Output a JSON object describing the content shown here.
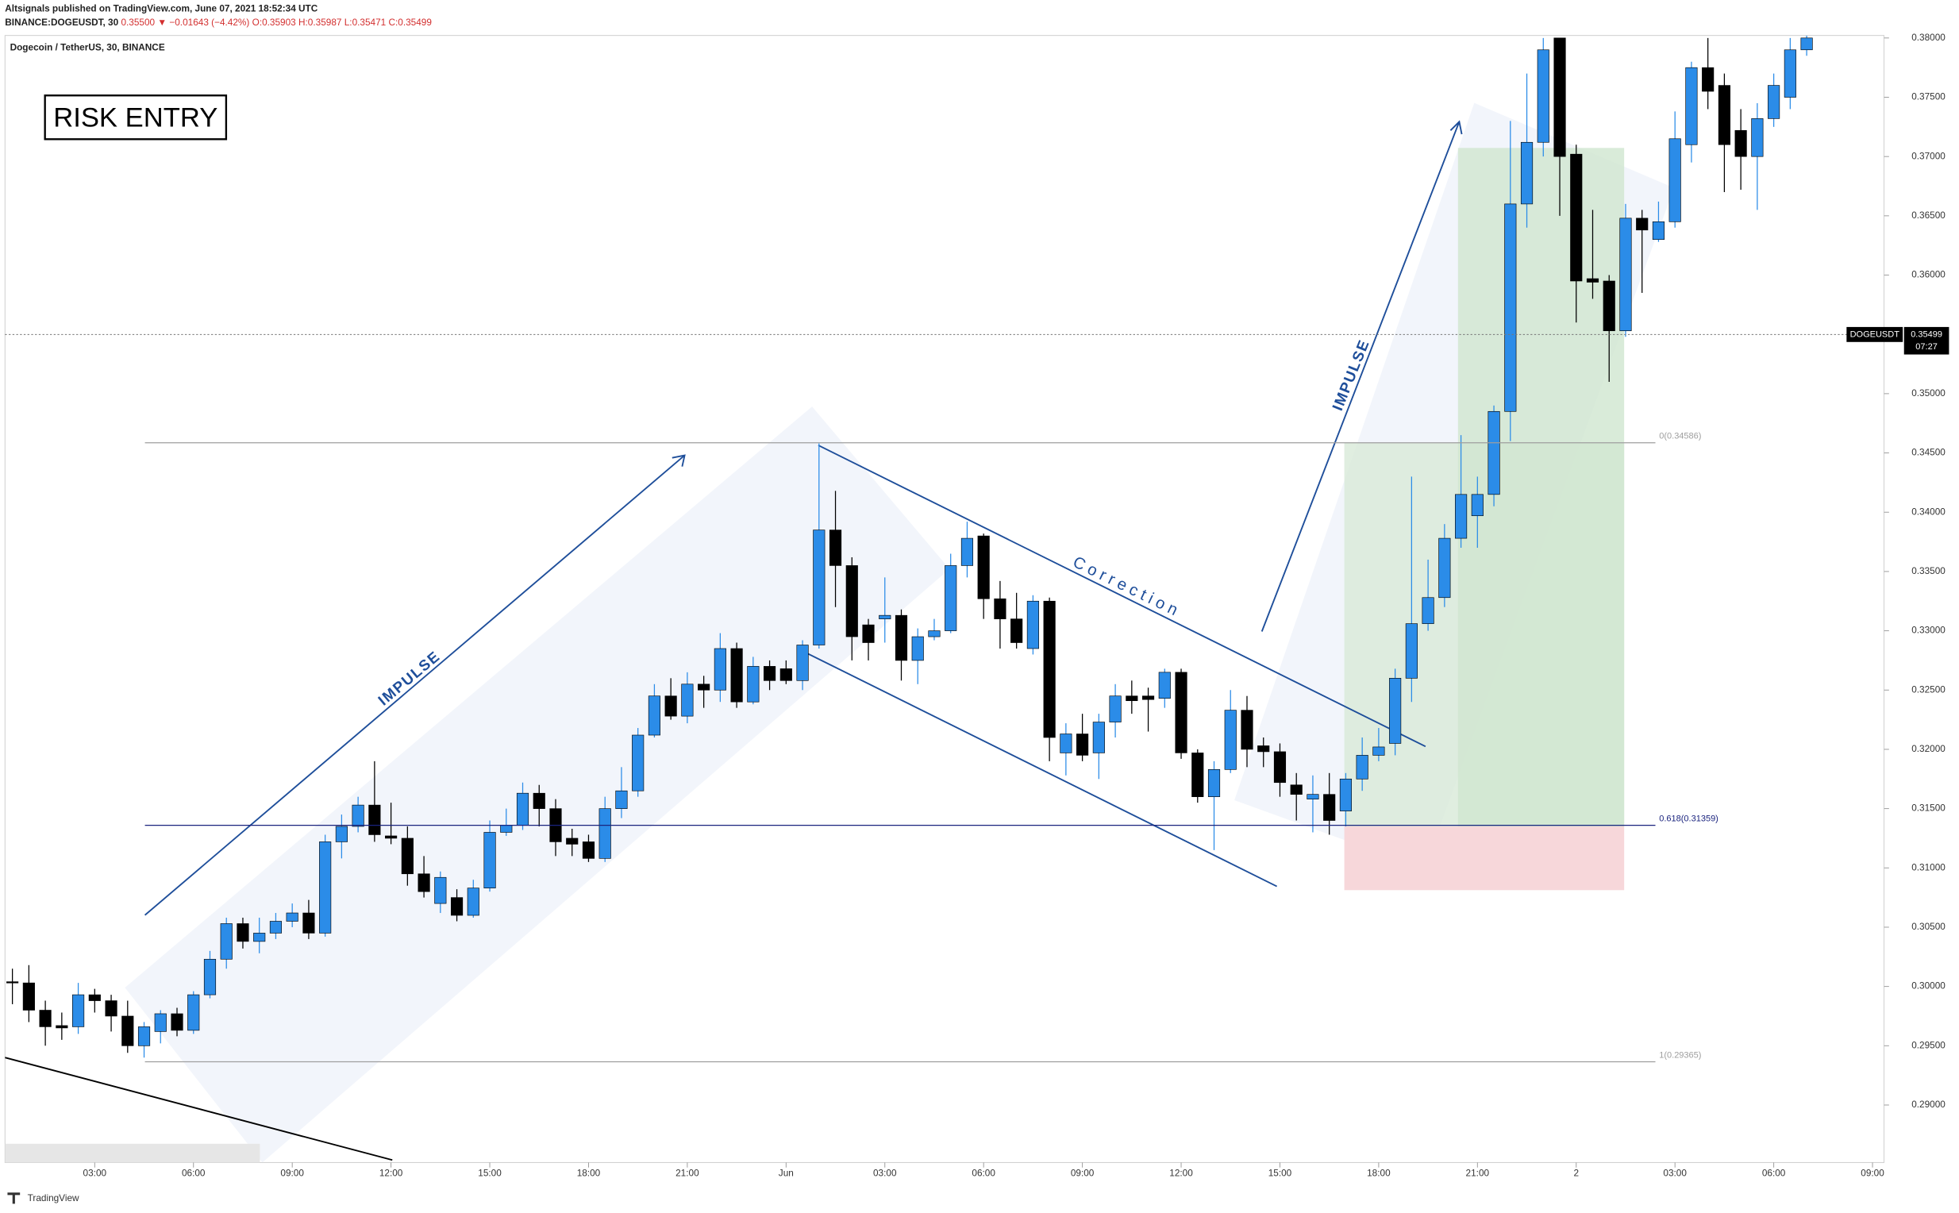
{
  "header": {
    "publisher": "Altsignals published on TradingView.com, June 07, 2021 18:52:34 UTC",
    "symbol": "BINANCE:DOGEUSDT, 30",
    "quote": "0.35500 ▼ −0.01643 (−4.42%)",
    "ohlc": "O:0.35903 H:0.35987 L:0.35471 C:0.35499"
  },
  "footer": "TradingView",
  "chart_data": {
    "type": "candlestick",
    "title": "Dogecoin / TetherUS, 30, BINANCE",
    "annotations": {
      "risk": "RISK ENTRY",
      "impulse1": "IMPULSE",
      "correction": "Correction",
      "impulse2": "IMPULSE"
    },
    "up_color": "#2b8ce8",
    "down_color": "#000000",
    "x": [
      0,
      1,
      2,
      3,
      4,
      5,
      6,
      7,
      8,
      9,
      10,
      11,
      12,
      13,
      14,
      15,
      16,
      17,
      18,
      19,
      20,
      21,
      22,
      23,
      24,
      25,
      26,
      27,
      28,
      29,
      30,
      31,
      32,
      33,
      34,
      35,
      36,
      37,
      38,
      39,
      40,
      41,
      42,
      43,
      44,
      45,
      46,
      47,
      48,
      49,
      50,
      51,
      52,
      53,
      54,
      55,
      56,
      57,
      58,
      59,
      60,
      61,
      62,
      63,
      64,
      65,
      66,
      67,
      68,
      69,
      70,
      71,
      72,
      73,
      74,
      75,
      76,
      77,
      78,
      79,
      80,
      81,
      82,
      83,
      84,
      85,
      86,
      87,
      88,
      89,
      90,
      91,
      92,
      93,
      94,
      95,
      96,
      97,
      98,
      99,
      100,
      101,
      102,
      103,
      104,
      105,
      106,
      107,
      108,
      109
    ],
    "open": [
      0.3004,
      0.3003,
      0.298,
      0.2967,
      0.2966,
      0.2993,
      0.2988,
      0.2975,
      0.295,
      0.2962,
      0.2977,
      0.2963,
      0.2993,
      0.3023,
      0.3053,
      0.3038,
      0.3045,
      0.3055,
      0.3062,
      0.3045,
      0.3122,
      0.3135,
      0.3153,
      0.3127,
      0.3125,
      0.3095,
      0.307,
      0.3075,
      0.306,
      0.3083,
      0.313,
      0.3136,
      0.3163,
      0.315,
      0.3125,
      0.3122,
      0.3108,
      0.315,
      0.3165,
      0.3212,
      0.3245,
      0.3228,
      0.3255,
      0.325,
      0.3285,
      0.324,
      0.327,
      0.3268,
      0.3258,
      0.3288,
      0.3385,
      0.3355,
      0.3305,
      0.331,
      0.3313,
      0.3275,
      0.3295,
      0.33,
      0.3355,
      0.338,
      0.3327,
      0.331,
      0.3285,
      0.3325,
      0.3197,
      0.3213,
      0.3197,
      0.3223,
      0.3245,
      0.3245,
      0.3243,
      0.3265,
      0.3197,
      0.316,
      0.3183,
      0.3233,
      0.3203,
      0.3198,
      0.317,
      0.3158,
      0.3162,
      0.3148,
      0.3175,
      0.3195,
      0.3205,
      0.326,
      0.3306,
      0.3328,
      0.3378,
      0.3397,
      0.3415,
      0.3485,
      0.366,
      0.3712,
      0.38,
      0.3702,
      0.3597,
      0.3595,
      0.3553,
      0.3648,
      0.363,
      0.3645,
      0.371,
      0.3775,
      0.376,
      0.3722,
      0.37,
      0.3732,
      0.375,
      0.379
    ],
    "high": [
      0.3015,
      0.3018,
      0.2988,
      0.2978,
      0.3003,
      0.2998,
      0.2993,
      0.2988,
      0.297,
      0.298,
      0.2982,
      0.2996,
      0.303,
      0.3058,
      0.3058,
      0.3058,
      0.3062,
      0.307,
      0.3073,
      0.3128,
      0.3145,
      0.316,
      0.319,
      0.3155,
      0.3135,
      0.311,
      0.3097,
      0.3082,
      0.309,
      0.314,
      0.315,
      0.3172,
      0.317,
      0.3158,
      0.3133,
      0.3128,
      0.316,
      0.3185,
      0.3218,
      0.3255,
      0.326,
      0.3265,
      0.3262,
      0.3298,
      0.329,
      0.3278,
      0.3275,
      0.3275,
      0.3292,
      0.3458,
      0.3418,
      0.3362,
      0.331,
      0.3345,
      0.3318,
      0.3302,
      0.331,
      0.3365,
      0.3392,
      0.3382,
      0.3342,
      0.3332,
      0.333,
      0.3328,
      0.3222,
      0.323,
      0.323,
      0.3255,
      0.3258,
      0.3252,
      0.3268,
      0.3268,
      0.32,
      0.319,
      0.325,
      0.3245,
      0.321,
      0.3205,
      0.318,
      0.3178,
      0.318,
      0.318,
      0.321,
      0.3218,
      0.3268,
      0.343,
      0.336,
      0.339,
      0.3465,
      0.343,
      0.349,
      0.373,
      0.377,
      0.38,
      0.38,
      0.371,
      0.3655,
      0.36,
      0.366,
      0.3655,
      0.3662,
      0.3738,
      0.378,
      0.38,
      0.377,
      0.374,
      0.3745,
      0.377,
      0.38,
      0.3802
    ],
    "low": [
      0.2985,
      0.297,
      0.295,
      0.2955,
      0.296,
      0.2978,
      0.2962,
      0.2944,
      0.294,
      0.2952,
      0.2958,
      0.296,
      0.299,
      0.3015,
      0.3032,
      0.3028,
      0.304,
      0.305,
      0.304,
      0.3042,
      0.3108,
      0.313,
      0.3122,
      0.312,
      0.3085,
      0.3075,
      0.3062,
      0.3055,
      0.3058,
      0.308,
      0.3127,
      0.3132,
      0.3135,
      0.311,
      0.311,
      0.3105,
      0.3105,
      0.3142,
      0.316,
      0.321,
      0.3225,
      0.3222,
      0.3235,
      0.324,
      0.3235,
      0.3238,
      0.325,
      0.3255,
      0.325,
      0.3285,
      0.332,
      0.3275,
      0.3275,
      0.329,
      0.3258,
      0.3255,
      0.3292,
      0.3298,
      0.3345,
      0.331,
      0.3285,
      0.3285,
      0.328,
      0.319,
      0.3178,
      0.319,
      0.3175,
      0.321,
      0.323,
      0.3215,
      0.3235,
      0.3192,
      0.3155,
      0.3115,
      0.318,
      0.3185,
      0.3185,
      0.316,
      0.314,
      0.313,
      0.3128,
      0.3135,
      0.3165,
      0.319,
      0.3195,
      0.324,
      0.33,
      0.332,
      0.337,
      0.337,
      0.3405,
      0.346,
      0.364,
      0.37,
      0.365,
      0.356,
      0.358,
      0.351,
      0.3548,
      0.3585,
      0.3628,
      0.364,
      0.3695,
      0.374,
      0.367,
      0.3672,
      0.3655,
      0.3725,
      0.374,
      0.3785
    ],
    "close": [
      0.3003,
      0.298,
      0.2966,
      0.2965,
      0.2993,
      0.2988,
      0.2975,
      0.295,
      0.2966,
      0.2977,
      0.2963,
      0.2993,
      0.3023,
      0.3053,
      0.3038,
      0.3045,
      0.3055,
      0.3062,
      0.3045,
      0.3122,
      0.3135,
      0.3153,
      0.3128,
      0.3125,
      0.3095,
      0.308,
      0.3092,
      0.306,
      0.3083,
      0.313,
      0.3136,
      0.3163,
      0.315,
      0.3122,
      0.312,
      0.3108,
      0.315,
      0.3165,
      0.3212,
      0.3245,
      0.3228,
      0.3255,
      0.325,
      0.3285,
      0.324,
      0.327,
      0.3258,
      0.3258,
      0.3288,
      0.3385,
      0.3355,
      0.3295,
      0.329,
      0.3313,
      0.3275,
      0.3295,
      0.33,
      0.3355,
      0.3378,
      0.3327,
      0.331,
      0.329,
      0.3325,
      0.321,
      0.3213,
      0.3195,
      0.3223,
      0.3245,
      0.3241,
      0.3242,
      0.3265,
      0.3197,
      0.316,
      0.3183,
      0.3233,
      0.32,
      0.3198,
      0.3172,
      0.3162,
      0.3162,
      0.314,
      0.3175,
      0.3195,
      0.3202,
      0.326,
      0.3306,
      0.3328,
      0.3378,
      0.3415,
      0.3415,
      0.3485,
      0.366,
      0.3712,
      0.379,
      0.37,
      0.3595,
      0.3594,
      0.3553,
      0.3648,
      0.3638,
      0.3645,
      0.3715,
      0.3775,
      0.3755,
      0.371,
      0.37,
      0.3732,
      0.376,
      0.379,
      0.38
    ],
    "xlim": [
      -0.45,
      113.7
    ],
    "xticks": [
      {
        "value": 5,
        "label": "03:00"
      },
      {
        "value": 11,
        "label": "06:00"
      },
      {
        "value": 17,
        "label": "09:00"
      },
      {
        "value": 23,
        "label": "12:00"
      },
      {
        "value": 29,
        "label": "15:00"
      },
      {
        "value": 35,
        "label": "18:00"
      },
      {
        "value": 41,
        "label": "21:00"
      },
      {
        "value": 47,
        "label": "Jun"
      },
      {
        "value": 53,
        "label": "03:00"
      },
      {
        "value": 59,
        "label": "06:00"
      },
      {
        "value": 65,
        "label": "09:00"
      },
      {
        "value": 71,
        "label": "12:00"
      },
      {
        "value": 77,
        "label": "15:00"
      },
      {
        "value": 83,
        "label": "18:00"
      },
      {
        "value": 89,
        "label": "21:00"
      },
      {
        "value": 95,
        "label": "2"
      },
      {
        "value": 101,
        "label": "03:00"
      },
      {
        "value": 107,
        "label": "06:00"
      },
      {
        "value": 113,
        "label": "09:00"
      }
    ],
    "ylim": [
      0.28515,
      0.38021
    ],
    "yticks": [
      {
        "value": 0.29,
        "label": "0.29000"
      },
      {
        "value": 0.295,
        "label": "0.29500"
      },
      {
        "value": 0.3,
        "label": "0.30000"
      },
      {
        "value": 0.305,
        "label": "0.30500"
      },
      {
        "value": 0.31,
        "label": "0.31000"
      },
      {
        "value": 0.315,
        "label": "0.31500"
      },
      {
        "value": 0.32,
        "label": "0.32000"
      },
      {
        "value": 0.325,
        "label": "0.32500"
      },
      {
        "value": 0.33,
        "label": "0.33000"
      },
      {
        "value": 0.335,
        "label": "0.33500"
      },
      {
        "value": 0.34,
        "label": "0.34000"
      },
      {
        "value": 0.345,
        "label": "0.34500"
      },
      {
        "value": 0.35,
        "label": "0.35000"
      },
      {
        "value": 0.355,
        "label": "0.35500"
      },
      {
        "value": 0.36,
        "label": "0.36000"
      },
      {
        "value": 0.365,
        "label": "0.36500"
      },
      {
        "value": 0.37,
        "label": "0.37000"
      },
      {
        "value": 0.375,
        "label": "0.37500"
      },
      {
        "value": 0.38,
        "label": "0.38000"
      }
    ],
    "fib_levels": [
      {
        "value": 0.34586,
        "label": "0(0.34586)",
        "color": "#9e9e9e"
      },
      {
        "value": 0.31359,
        "label": "0.618(0.31359)",
        "color": "#1a237e"
      },
      {
        "value": 0.29365,
        "label": "1(0.29365)",
        "color": "#9e9e9e"
      }
    ],
    "last_price": {
      "value": 0.35499,
      "symbol": "DOGEUSDT",
      "label": "0.35499",
      "countdown": "07:27"
    }
  }
}
